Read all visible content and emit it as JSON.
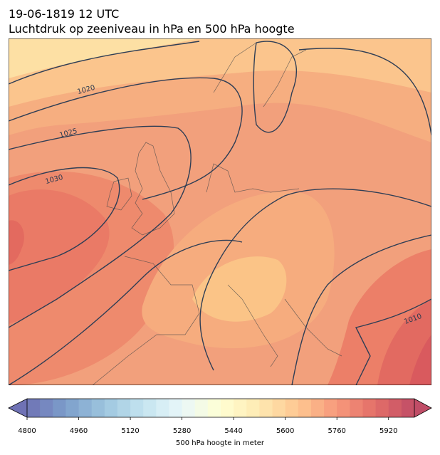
{
  "header": {
    "title": "19-06-1819 12 UTC",
    "subtitle": "Luchtdruk op zeeniveau in hPa en 500 hPa hoogte"
  },
  "map": {
    "contour_labels": [
      1020,
      1025,
      1030,
      1010
    ]
  },
  "colorbar": {
    "label": "500 hPa hoogte in meter",
    "lim": [
      4800,
      6000
    ],
    "ticks": [
      4800,
      4960,
      5120,
      5280,
      5440,
      5600,
      5760,
      5920
    ],
    "segments": 30,
    "colormap": [
      "#313695",
      "#4575b4",
      "#74add1",
      "#abd9e9",
      "#e0f3f8",
      "#ffffbf",
      "#fee090",
      "#fdae61",
      "#f46d43",
      "#d73027",
      "#a50026"
    ],
    "alpha": 0.7
  }
}
